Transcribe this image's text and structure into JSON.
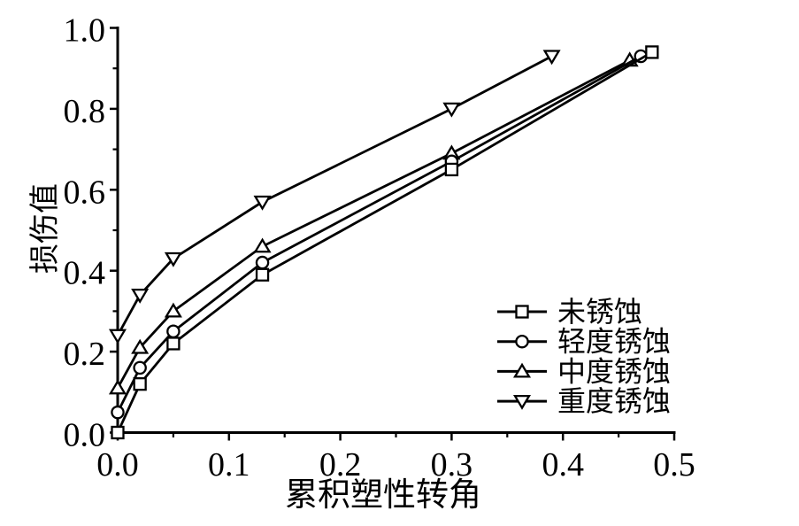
{
  "chart_data": {
    "type": "line",
    "title": "",
    "xlabel": "累积塑性转角",
    "ylabel": "损伤值",
    "xlim": [
      0,
      0.5
    ],
    "ylim": [
      0,
      1.0
    ],
    "grid": false,
    "legend_position": "inside lower right",
    "colors": {
      "line": "#000000",
      "background": "#ffffff",
      "marker_fill": "#ffffff"
    },
    "x_major_ticks": [
      0,
      0.1,
      0.2,
      0.3,
      0.4,
      0.5
    ],
    "x_tick_labels": [
      "0.0",
      "0.1",
      "0.2",
      "0.3",
      "0.4",
      "0.5"
    ],
    "x_minor_ticks": [
      0.05,
      0.15,
      0.25,
      0.35,
      0.45
    ],
    "y_major_ticks": [
      0,
      0.2,
      0.4,
      0.6,
      0.8,
      1.0
    ],
    "y_tick_labels": [
      "0.0",
      "0.2",
      "0.4",
      "0.6",
      "0.8",
      "1.0"
    ],
    "y_minor_ticks": [
      0.1,
      0.3,
      0.5,
      0.7,
      0.9
    ],
    "series": [
      {
        "name": "未锈蚀",
        "marker": "square",
        "x": [
          0,
          0.02,
          0.05,
          0.13,
          0.3,
          0.48
        ],
        "y": [
          0.0,
          0.12,
          0.22,
          0.39,
          0.65,
          0.94
        ]
      },
      {
        "name": "轻度锈蚀",
        "marker": "circle",
        "x": [
          0,
          0.02,
          0.05,
          0.13,
          0.3,
          0.47
        ],
        "y": [
          0.05,
          0.16,
          0.25,
          0.42,
          0.67,
          0.93
        ]
      },
      {
        "name": "中度锈蚀",
        "marker": "triangle-up",
        "x": [
          0,
          0.02,
          0.05,
          0.13,
          0.3,
          0.46
        ],
        "y": [
          0.11,
          0.21,
          0.3,
          0.46,
          0.69,
          0.92
        ]
      },
      {
        "name": "重度锈蚀",
        "marker": "triangle-down",
        "x": [
          0,
          0.02,
          0.05,
          0.13,
          0.3,
          0.39
        ],
        "y": [
          0.24,
          0.34,
          0.43,
          0.57,
          0.8,
          0.93
        ]
      }
    ]
  }
}
